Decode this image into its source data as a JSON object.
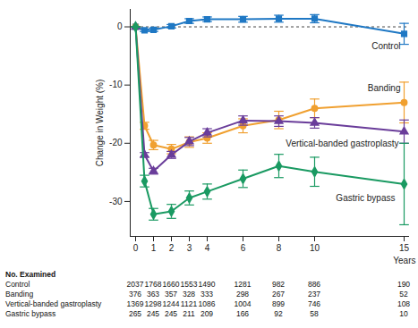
{
  "chart_data": {
    "type": "line",
    "x_label": "Years",
    "y_label": "Change in Weight (%)",
    "x": [
      0,
      0.5,
      1,
      2,
      3,
      4,
      6,
      8,
      10,
      15
    ],
    "xlim": [
      -0.3,
      15.3
    ],
    "xticks": [
      0,
      1,
      2,
      3,
      4,
      6,
      8,
      10,
      15
    ],
    "ylim": [
      -36,
      3
    ],
    "yticks": [
      0,
      -10,
      -20,
      -30
    ],
    "grid": false,
    "series": [
      {
        "name": "Control",
        "color": "#1f78c4",
        "marker": "square",
        "line_style": "solid",
        "values": [
          0,
          -0.6,
          -0.5,
          0.1,
          1.0,
          1.3,
          1.3,
          1.4,
          1.4,
          -1.2
        ],
        "error": [
          0,
          0.2,
          0.3,
          0.3,
          0.4,
          0.4,
          0.5,
          0.6,
          0.7,
          1.8
        ]
      },
      {
        "name": "Banding",
        "color": "#f0a030",
        "marker": "circle",
        "line_style": "solid",
        "values": [
          0,
          -17,
          -20.3,
          -21,
          -19.8,
          -19.1,
          -17,
          -16,
          -14,
          -13
        ],
        "error": [
          0,
          0.6,
          0.8,
          0.8,
          0.9,
          0.9,
          1.2,
          1.5,
          1.6,
          3.5
        ]
      },
      {
        "name": "Vertical-banded gastroplasty",
        "color": "#6a3d9a",
        "marker": "triangle",
        "line_style": "solid",
        "values": [
          0,
          -22,
          -24.8,
          -22,
          -19.7,
          -18.2,
          -16.1,
          -16.2,
          -16.5,
          -18
        ],
        "error": [
          0,
          0.4,
          0.5,
          0.6,
          0.7,
          0.7,
          0.8,
          0.9,
          0.9,
          2
        ]
      },
      {
        "name": "Gastric bypass",
        "color": "#1a9a62",
        "marker": "diamond",
        "line_style": "solid",
        "values": [
          0,
          -26.5,
          -32.2,
          -31.7,
          -29.4,
          -28.3,
          -26.1,
          -23.9,
          -24.9,
          -27
        ],
        "error": [
          0,
          1,
          1,
          1.2,
          1.2,
          1.3,
          1.5,
          2,
          2.5,
          7
        ]
      }
    ],
    "numbers_examined": {
      "title": "No. Examined",
      "rows": [
        {
          "label": "Control",
          "values": [
            2037,
            1768,
            1660,
            1553,
            1490,
            1281,
            982,
            886,
            190
          ]
        },
        {
          "label": "Banding",
          "values": [
            376,
            363,
            357,
            328,
            333,
            298,
            267,
            237,
            52
          ]
        },
        {
          "label": "Vertical-banded gastroplasty",
          "values": [
            1369,
            1298,
            1244,
            1121,
            1086,
            1004,
            899,
            746,
            108
          ]
        },
        {
          "label": "Gastric bypass",
          "values": [
            265,
            245,
            245,
            211,
            209,
            166,
            92,
            58,
            10
          ]
        }
      ]
    }
  }
}
